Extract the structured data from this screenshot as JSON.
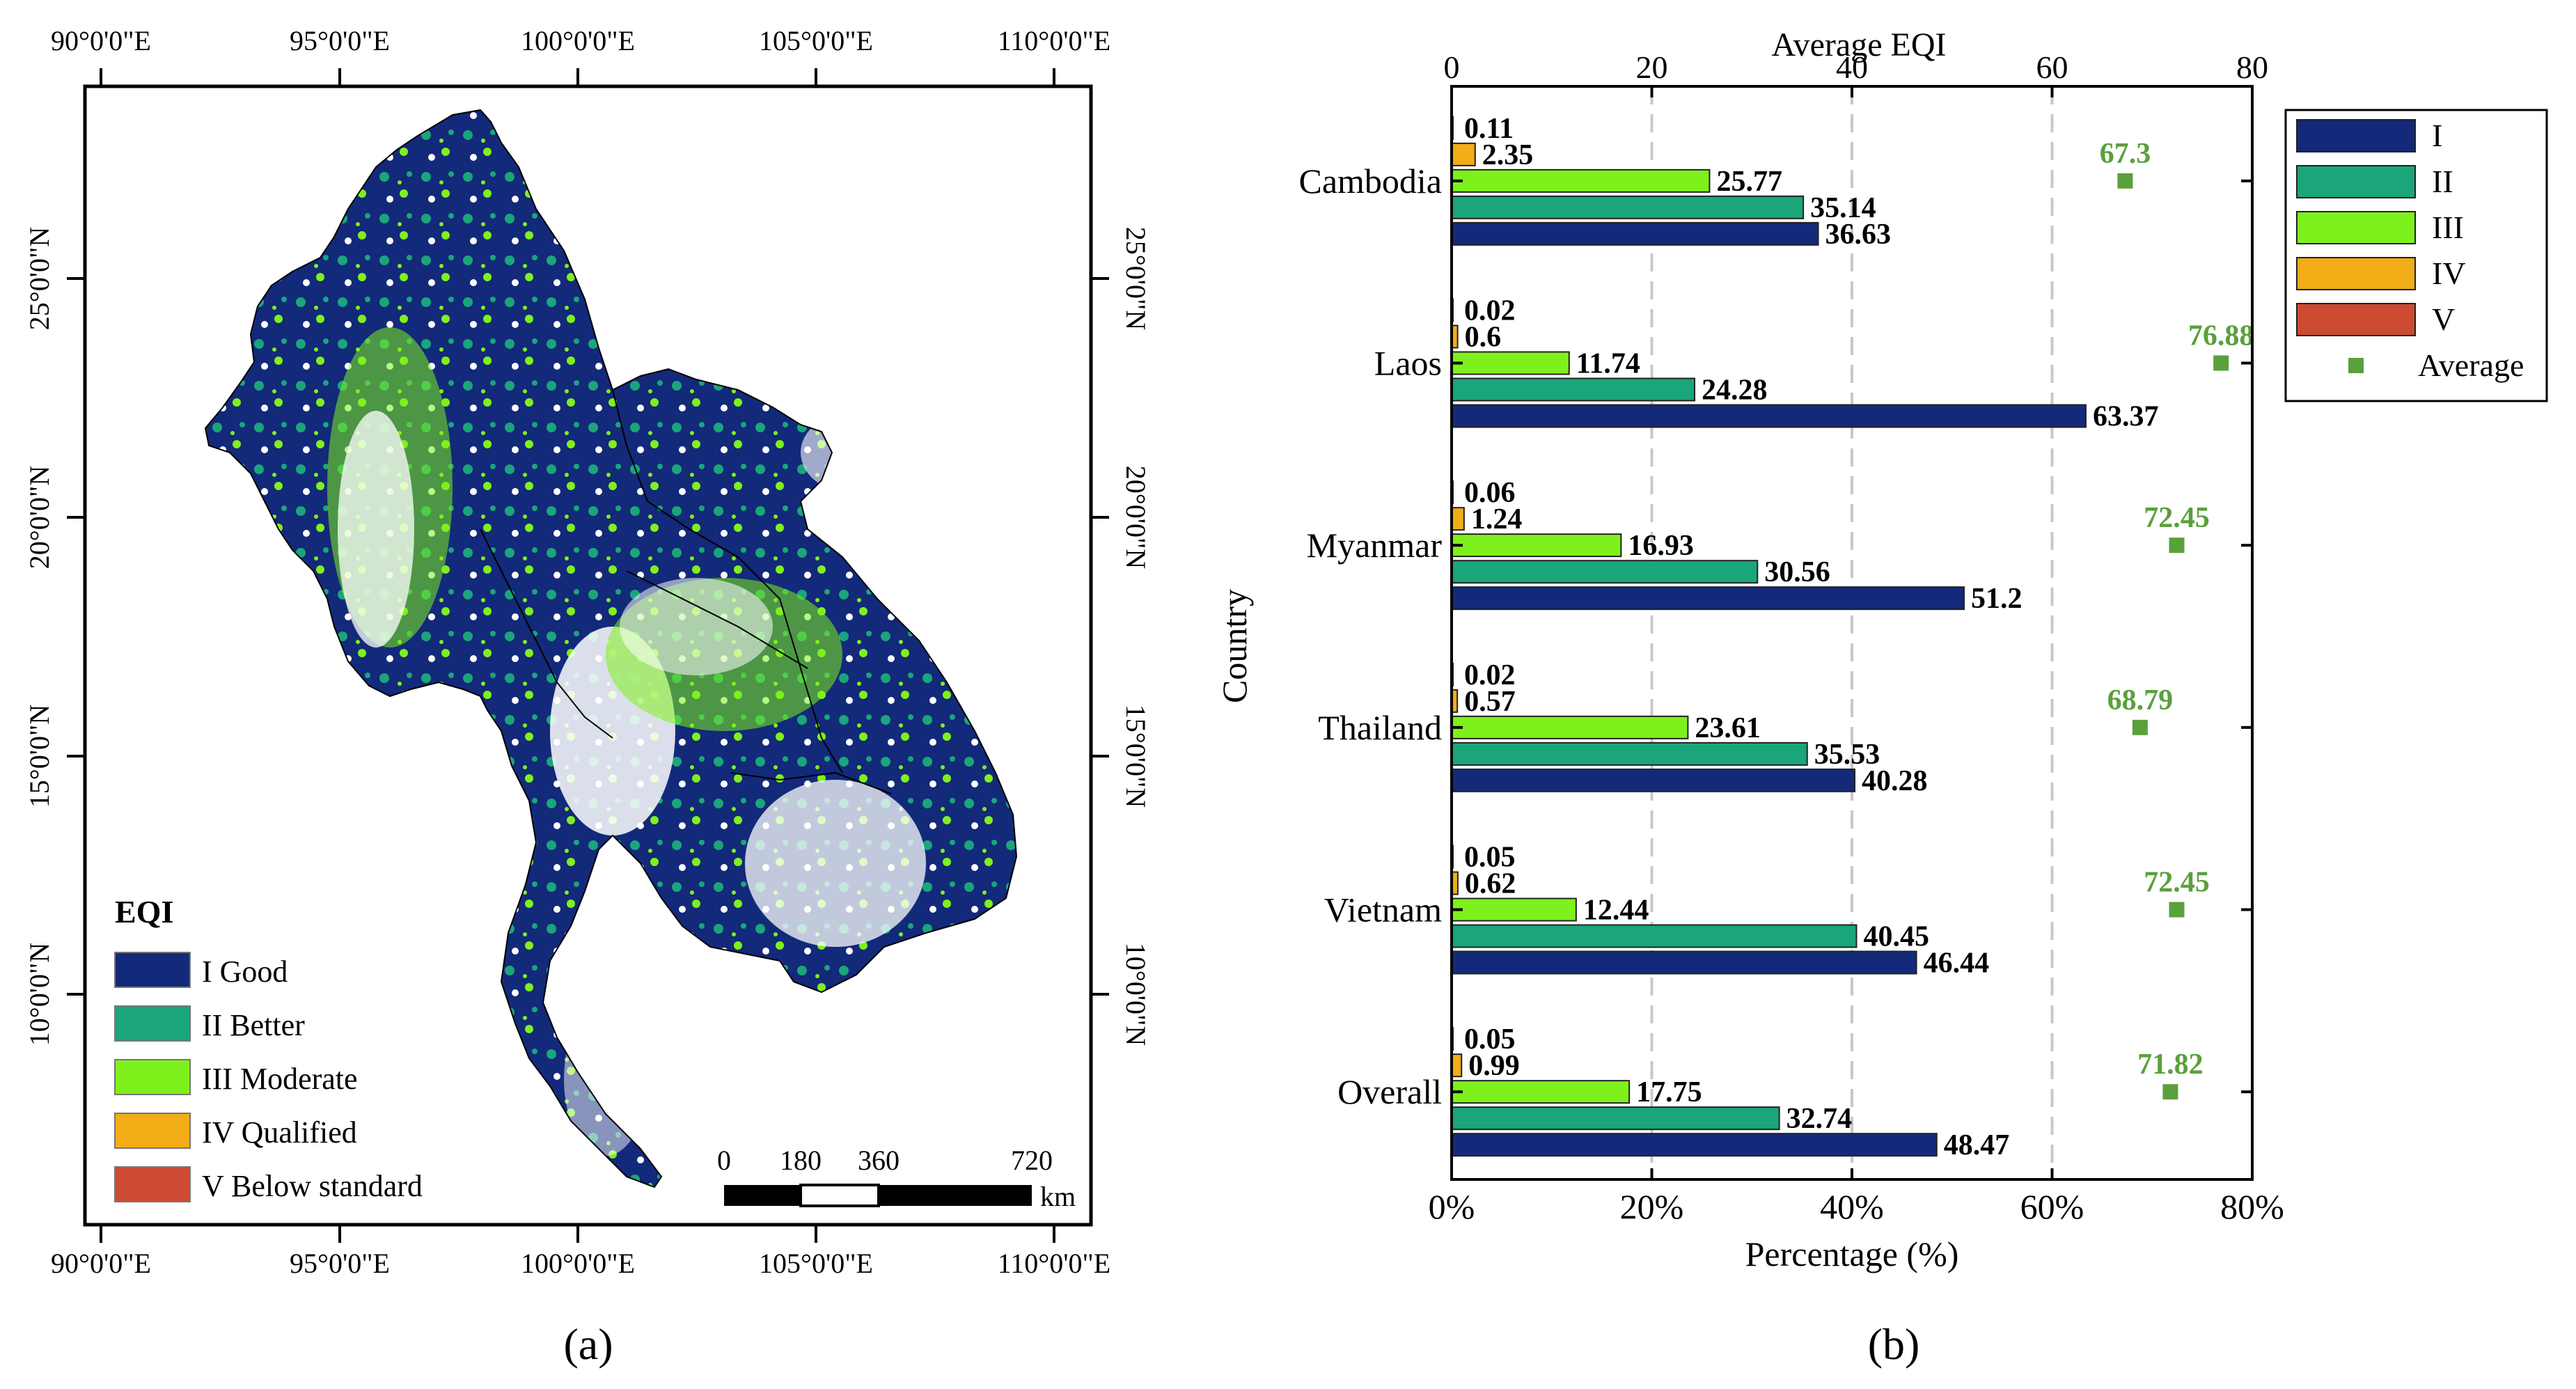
{
  "map_panel": {
    "top_lon_labels": [
      "90°0'0\"E",
      "95°0'0\"E",
      "100°0'0\"E",
      "105°0'0\"E",
      "110°0'0\"E"
    ],
    "bottom_lon_labels": [
      "90°0'0\"E",
      "95°0'0\"E",
      "100°0'0\"E",
      "105°0'0\"E",
      "110°0'0\"E"
    ],
    "left_lat_labels": [
      "25°0'0\"N",
      "20°0'0\"N",
      "15°0'0\"N",
      "10°0'0\"N"
    ],
    "right_lat_labels": [
      "25°0'0\"N",
      "20°0'0\"N",
      "15°0'0\"N",
      "10°0'0\"N"
    ],
    "legend": {
      "title": "EQI",
      "items": [
        {
          "label": "I Good",
          "color": "#13297a"
        },
        {
          "label": "II Better",
          "color": "#1aa57a"
        },
        {
          "label": "III Moderate",
          "color": "#7ef11c"
        },
        {
          "label": "IV Qualified",
          "color": "#f2ad17"
        },
        {
          "label": "V Below standard",
          "color": "#cc4b32"
        }
      ]
    },
    "scalebar": {
      "ticks": [
        "0",
        "180",
        "360",
        "720"
      ],
      "unit": "km"
    },
    "caption": "(a)"
  },
  "chart_data": {
    "type": "bar",
    "orientation": "horizontal",
    "top_axis_title": "Average EQI",
    "top_ticks": [
      "0",
      "20",
      "40",
      "60",
      "80"
    ],
    "top_range": [
      0,
      80
    ],
    "xlabel": "Percentage (%)",
    "x_ticks": [
      "0%",
      "20%",
      "40%",
      "60%",
      "80%"
    ],
    "xlim": [
      0,
      80
    ],
    "ylabel": "Country",
    "categories": [
      "Cambodia",
      "Laos",
      "Myanmar",
      "Thailand",
      "Vietnam",
      "Overall"
    ],
    "series": [
      {
        "name": "I",
        "color": "#13297a",
        "values": [
          36.63,
          63.37,
          51.2,
          40.28,
          46.44,
          48.47
        ],
        "labels": [
          "36.63",
          "63.37",
          "51.2",
          "40.28",
          "46.44",
          "48.47"
        ]
      },
      {
        "name": "II",
        "color": "#1aa57a",
        "values": [
          35.14,
          24.28,
          30.56,
          35.53,
          40.45,
          32.74
        ],
        "labels": [
          "35.14",
          "24.28",
          "30.56",
          "35.53",
          "40.45",
          "32.74"
        ]
      },
      {
        "name": "III",
        "color": "#7ef11c",
        "values": [
          25.77,
          11.74,
          16.93,
          23.61,
          12.44,
          17.75
        ],
        "labels": [
          "25.77",
          "11.74",
          "16.93",
          "23.61",
          "12.44",
          "17.75"
        ]
      },
      {
        "name": "IV",
        "color": "#f2ad17",
        "values": [
          2.35,
          0.6,
          1.24,
          0.57,
          0.62,
          0.99
        ],
        "labels": [
          "2.35",
          "0.6",
          "1.24",
          "0.57",
          "0.62",
          "0.99"
        ]
      },
      {
        "name": "V",
        "color": "#cc4b32",
        "values": [
          0.11,
          0.02,
          0.06,
          0.02,
          0.05,
          0.05
        ],
        "labels": [
          "0.11",
          "0.02",
          "0.06",
          "0.02",
          "0.05",
          "0.05"
        ]
      }
    ],
    "average": {
      "name": "Average",
      "color": "#5aa03c",
      "values": [
        67.3,
        76.88,
        72.45,
        68.79,
        72.45,
        71.82
      ],
      "labels": [
        "67.3",
        "76.88",
        "72.45",
        "68.79",
        "72.45",
        "71.82"
      ]
    },
    "grid": "vertical dashed at 20, 40, 60",
    "legend": [
      "I",
      "II",
      "III",
      "IV",
      "V",
      "Average"
    ],
    "legend_position": "right",
    "caption": "(b)"
  }
}
